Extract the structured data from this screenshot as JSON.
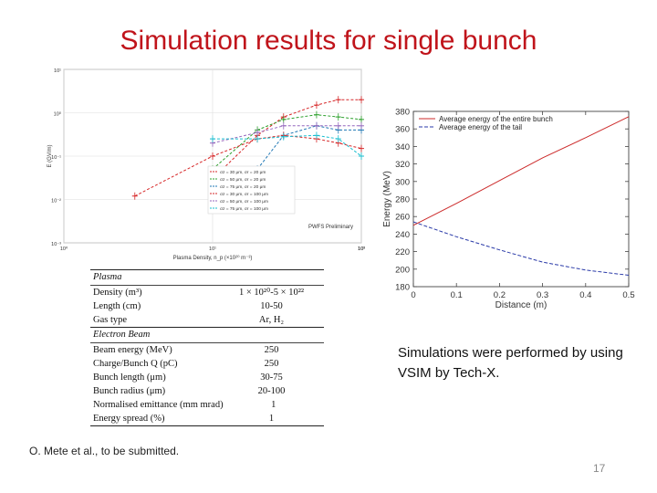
{
  "slide": {
    "title": "Simulation results for single bunch",
    "description": "Simulations were performed by using VSIM by Tech-X.",
    "citation": "O. Mete et al., to be submitted.",
    "page_number": "17"
  },
  "table": {
    "sections": [
      {
        "heading": "Plasma",
        "rows": [
          {
            "label": "Density (m³)",
            "value": "1 × 10²⁰-5 × 10²²"
          },
          {
            "label": "Length (cm)",
            "value": "10-50"
          },
          {
            "label": "Gas type",
            "value": "Ar, H₂"
          }
        ]
      },
      {
        "heading": "Electron Beam",
        "rows": [
          {
            "label": "Beam energy (MeV)",
            "value": "250"
          },
          {
            "label": "Charge/Bunch Q (pC)",
            "value": "250"
          },
          {
            "label": "Bunch length (μm)",
            "value": "30-75"
          },
          {
            "label": "Bunch radius (μm)",
            "value": "20-100"
          },
          {
            "label": "Normalised emittance (mm mrad)",
            "value": "1"
          },
          {
            "label": "Energy spread (%)",
            "value": "1"
          }
        ]
      }
    ]
  },
  "chart_data": [
    {
      "type": "line",
      "log_x": true,
      "log_y": true,
      "xlabel": "Plasma Density, n_p (×10²⁰ m⁻³)",
      "ylabel": "E (GV/m)",
      "xlim": [
        0.1,
        10
      ],
      "ylim": [
        0.001,
        10
      ],
      "x_ticks": [
        "10⁰",
        "10¹",
        "10²",
        "10³"
      ],
      "y_ticks": [
        "10⁻³",
        "10⁻²",
        "10⁻¹",
        "10⁰",
        "10¹"
      ],
      "annotation": "PWFS Preliminary",
      "grid": true,
      "series": [
        {
          "name": "σz = 30 μm, σr = 20 μm",
          "color": "#d62728",
          "x": [
            1,
            2,
            3,
            5,
            7,
            10
          ],
          "y": [
            0.03,
            0.3,
            0.8,
            1.5,
            2.0,
            2.0
          ]
        },
        {
          "name": "σz = 50 μm, σr = 20 μm",
          "color": "#2ca02c",
          "x": [
            1,
            2,
            3,
            5,
            7,
            10
          ],
          "y": [
            0.05,
            0.4,
            0.7,
            0.9,
            0.8,
            0.7
          ]
        },
        {
          "name": "σz = 75 μm, σr = 20 μm",
          "color": "#1f77b4",
          "x": [
            2,
            3,
            5,
            7,
            10
          ],
          "y": [
            0.05,
            0.3,
            0.5,
            0.4,
            0.4
          ]
        },
        {
          "name": "σz = 30 μm, σr = 100 μm",
          "color": "#d62728",
          "x": [
            0.3,
            1,
            2,
            3,
            5,
            7,
            10
          ],
          "y": [
            0.012,
            0.1,
            0.25,
            0.3,
            0.25,
            0.2,
            0.15
          ]
        },
        {
          "name": "σz = 50 μm, σr = 100 μm",
          "color": "#9467bd",
          "x": [
            1,
            2,
            3,
            5,
            7,
            10
          ],
          "y": [
            0.2,
            0.35,
            0.5,
            0.5,
            0.5,
            0.5
          ]
        },
        {
          "name": "σz = 75 μm, σr = 100 μm",
          "color": "#17becf",
          "x": [
            1,
            2,
            3,
            5,
            7,
            10
          ],
          "y": [
            0.25,
            0.25,
            0.28,
            0.3,
            0.25,
            0.1
          ]
        }
      ]
    },
    {
      "type": "line",
      "xlabel": "Distance (m)",
      "ylabel": "Energy (MeV)",
      "xlim": [
        0,
        0.5
      ],
      "ylim": [
        180,
        380
      ],
      "x_ticks": [
        0,
        0.1,
        0.2,
        0.3,
        0.4,
        0.5
      ],
      "y_ticks": [
        180,
        200,
        220,
        240,
        260,
        280,
        300,
        320,
        340,
        360,
        380
      ],
      "legend": "top",
      "grid": false,
      "series": [
        {
          "name": "Average energy of the entire bunch",
          "color": "#cc2a2a",
          "dash": false,
          "x": [
            0,
            0.1,
            0.2,
            0.3,
            0.4,
            0.5
          ],
          "y": [
            250,
            275,
            301,
            327,
            350,
            374
          ]
        },
        {
          "name": "Average energy of the tail",
          "color": "#2a3aa8",
          "dash": true,
          "x": [
            0,
            0.1,
            0.2,
            0.3,
            0.4,
            0.5
          ],
          "y": [
            254,
            237,
            222,
            208,
            199,
            193
          ]
        }
      ]
    }
  ]
}
